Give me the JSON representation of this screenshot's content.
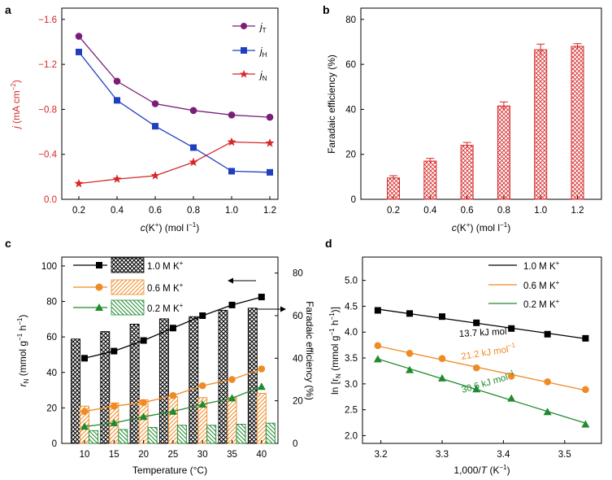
{
  "colors": {
    "purple": "#7b1e7a",
    "blue": "#1f3fbf",
    "red": "#d62728",
    "black": "#000000",
    "orange": "#f08a24",
    "green": "#1f8a2e"
  },
  "chart_data": [
    {
      "panel": "a",
      "type": "line",
      "ylabel_parts": [
        "j",
        " (mA cm",
        "−2",
        ")"
      ],
      "xlabel_parts": [
        "c",
        "(K",
        "+",
        ") (mol l",
        "−1",
        ")"
      ],
      "x": [
        0.2,
        0.4,
        0.6,
        0.8,
        1.0,
        1.2
      ],
      "xticks": [
        "0.2",
        "0.4",
        "0.6",
        "0.8",
        "1.0",
        "1.2"
      ],
      "ylim": [
        0,
        -1.7
      ],
      "yticks": [
        0.0,
        -0.4,
        -0.8,
        -1.2,
        -1.6
      ],
      "ytick_labels": [
        "0.0",
        "−0.4",
        "−0.8",
        "−1.2",
        "−1.6"
      ],
      "series": [
        {
          "name": "jT",
          "legend_main": "j",
          "legend_sub": "T",
          "values": [
            -1.45,
            -1.05,
            -0.85,
            -0.79,
            -0.75,
            -0.73
          ]
        },
        {
          "name": "jH",
          "legend_main": "j",
          "legend_sub": "H",
          "values": [
            -1.31,
            -0.88,
            -0.65,
            -0.46,
            -0.25,
            -0.24
          ]
        },
        {
          "name": "jN",
          "legend_main": "j",
          "legend_sub": "N",
          "values": [
            -0.14,
            -0.18,
            -0.21,
            -0.33,
            -0.51,
            -0.5
          ]
        }
      ]
    },
    {
      "panel": "b",
      "type": "bar",
      "ylabel": "Faradaic efficiency (%)",
      "xlabel_parts": [
        "c",
        "(K",
        "+",
        ") (mol l",
        "−1",
        ")"
      ],
      "categories": [
        "0.2",
        "0.4",
        "0.6",
        "0.8",
        "1.0",
        "1.2"
      ],
      "values": [
        9.5,
        17,
        24,
        41.5,
        66.5,
        68
      ],
      "errors": [
        1,
        1.2,
        1.3,
        1.8,
        2.5,
        1.2
      ],
      "ylim": [
        0,
        85
      ],
      "yticks": [
        0,
        20,
        40,
        60,
        80
      ]
    },
    {
      "panel": "c",
      "type": "bar+line",
      "ylabel_parts": [
        "r",
        "N",
        " (mmol g",
        "−1",
        " h",
        "−1",
        ")"
      ],
      "y2label": "Faradaic efficiency (%)",
      "xlabel": "Temperature (°C)",
      "categories": [
        "10",
        "15",
        "20",
        "25",
        "30",
        "35",
        "40"
      ],
      "ylim": [
        0,
        105
      ],
      "yticks": [
        0,
        20,
        40,
        60,
        80,
        100
      ],
      "y2lim": [
        0,
        87.5
      ],
      "y2ticks": [
        0,
        20,
        40,
        60,
        80
      ],
      "series": [
        {
          "name": "1.0 M K+",
          "legend_main": "1.0 M K",
          "legend_sup": "+",
          "rate": [
            48,
            52,
            58,
            65,
            72,
            78,
            82.5
          ],
          "fe": [
            49,
            52.5,
            56,
            58.5,
            59.5,
            62.5,
            63.5
          ]
        },
        {
          "name": "0.6 M K+",
          "legend_main": "0.6 M K",
          "legend_sup": "+",
          "rate": [
            18,
            21,
            23,
            27,
            32.5,
            36,
            42
          ],
          "fe": [
            17.5,
            19,
            20.5,
            22,
            21.5,
            21.5,
            23.5
          ]
        },
        {
          "name": "0.2 M K+",
          "legend_main": "0.2 M K",
          "legend_sup": "+",
          "rate": [
            9.5,
            11.5,
            15,
            18,
            22,
            25.5,
            32
          ],
          "fe": [
            6,
            6.5,
            7.5,
            8.5,
            8.5,
            9,
            9.5
          ]
        }
      ]
    },
    {
      "panel": "d",
      "type": "scatter+line",
      "ylabel_parts": [
        "ln [r",
        "N",
        " (mmol g",
        "−1",
        " h",
        "−1",
        ")]"
      ],
      "xlabel_parts": [
        "1,000/",
        "T",
        " (K",
        "−1",
        ")"
      ],
      "xlim": [
        3.17,
        3.56
      ],
      "xticks": [
        3.2,
        3.3,
        3.4,
        3.5
      ],
      "ylim": [
        1.85,
        5.45
      ],
      "yticks": [
        2.0,
        2.5,
        3.0,
        3.5,
        4.0,
        4.5,
        5.0
      ],
      "x": [
        3.195,
        3.247,
        3.3,
        3.356,
        3.413,
        3.472,
        3.534
      ],
      "series": [
        {
          "name": "1.0 M K+",
          "legend_main": "1.0 M K",
          "legend_sup": "+",
          "values": [
            4.42,
            4.36,
            4.3,
            4.18,
            4.07,
            3.96,
            3.88
          ],
          "annotation": "13.7 kJ mol",
          "annotation_sup": "−1"
        },
        {
          "name": "0.6 M K+",
          "legend_main": "0.6 M K",
          "legend_sup": "+",
          "values": [
            3.74,
            3.59,
            3.49,
            3.31,
            3.15,
            3.04,
            2.89
          ],
          "annotation": "21.2 kJ mol",
          "annotation_sup": "−1"
        },
        {
          "name": "0.2 M K+",
          "legend_main": "0.2 M K",
          "legend_sup": "+",
          "values": [
            3.48,
            3.27,
            3.11,
            2.9,
            2.72,
            2.46,
            2.22
          ],
          "annotation": "30.6 kJ mol",
          "annotation_sup": "−1"
        }
      ]
    }
  ],
  "panel_labels": [
    "a",
    "b",
    "c",
    "d"
  ]
}
